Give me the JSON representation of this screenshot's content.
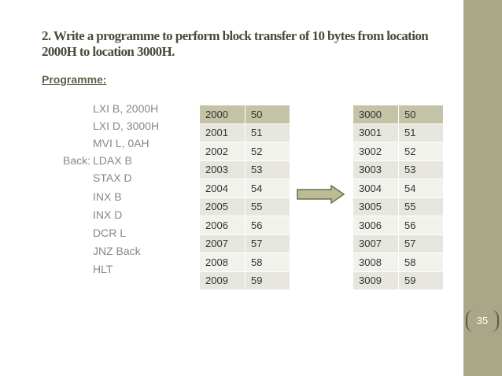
{
  "slide": {
    "title": "2. Write a programme to perform block transfer of 10 bytes from location 2000H to location 3000H.",
    "subtitle": "Programme:",
    "page_number": "35"
  },
  "code": [
    {
      "label": "",
      "instr": "LXI B, 2000H"
    },
    {
      "label": "",
      "instr": "LXI D, 3000H"
    },
    {
      "label": "",
      "instr": "MVI L, 0AH"
    },
    {
      "label": "Back:",
      "instr": "LDAX B"
    },
    {
      "label": "",
      "instr": "STAX D"
    },
    {
      "label": "",
      "instr": "INX B"
    },
    {
      "label": "",
      "instr": "INX D"
    },
    {
      "label": "",
      "instr": "DCR L"
    },
    {
      "label": "",
      "instr": "JNZ Back"
    },
    {
      "label": "",
      "instr": "HLT"
    }
  ],
  "source_table": [
    [
      "2000",
      "50"
    ],
    [
      "2001",
      "51"
    ],
    [
      "2002",
      "52"
    ],
    [
      "2003",
      "53"
    ],
    [
      "2004",
      "54"
    ],
    [
      "2005",
      "55"
    ],
    [
      "2006",
      "56"
    ],
    [
      "2007",
      "57"
    ],
    [
      "2008",
      "58"
    ],
    [
      "2009",
      "59"
    ]
  ],
  "dest_table": [
    [
      "3000",
      "50"
    ],
    [
      "3001",
      "51"
    ],
    [
      "3002",
      "52"
    ],
    [
      "3003",
      "53"
    ],
    [
      "3004",
      "54"
    ],
    [
      "3005",
      "55"
    ],
    [
      "3006",
      "56"
    ],
    [
      "3007",
      "57"
    ],
    [
      "3008",
      "58"
    ],
    [
      "3009",
      "59"
    ]
  ],
  "colors": {
    "sidebar": "#a8a787",
    "header_row": "#c4c3a6",
    "arrow_fill": "#bcbc95",
    "arrow_stroke": "#6f6d50"
  },
  "icons": {
    "transfer_arrow": "right-arrow-icon"
  }
}
